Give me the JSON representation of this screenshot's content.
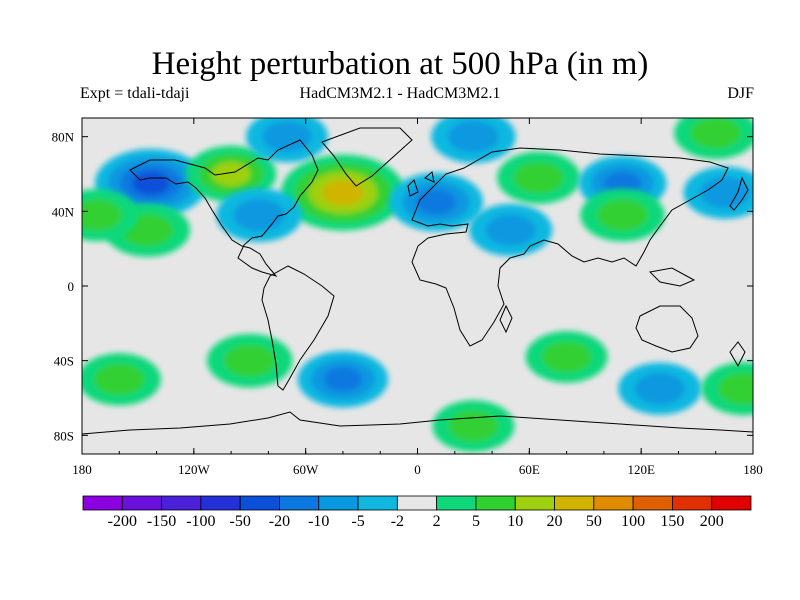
{
  "title": "Height perturbation at 500 hPa (in m)",
  "subtitle_left": "Expt = tdali-tdaji",
  "subtitle_center": "HadCM3M2.1 - HadCM3M2.1",
  "subtitle_right": "DJF",
  "axes": {
    "lon_range": [
      -180,
      180
    ],
    "lat_range": [
      -90,
      90
    ],
    "x_ticks": [
      {
        "value": -180,
        "label": "180"
      },
      {
        "value": -120,
        "label": "120W"
      },
      {
        "value": -60,
        "label": "60W"
      },
      {
        "value": 0,
        "label": "0"
      },
      {
        "value": 60,
        "label": "60E"
      },
      {
        "value": 120,
        "label": "120E"
      },
      {
        "value": 180,
        "label": "180"
      }
    ],
    "y_ticks": [
      {
        "value": 80,
        "label": "80N"
      },
      {
        "value": 40,
        "label": "40N"
      },
      {
        "value": 0,
        "label": "0"
      },
      {
        "value": -40,
        "label": "40S"
      },
      {
        "value": -80,
        "label": "80S"
      }
    ]
  },
  "colorbar": {
    "colors": [
      "#8b00e0",
      "#6a10dc",
      "#4a20d8",
      "#2530d8",
      "#0a50d8",
      "#0a78e0",
      "#0a98e0",
      "#10b8e0",
      "#e6e6e6",
      "#10d87a",
      "#30d030",
      "#9ed010",
      "#d0b400",
      "#e08c00",
      "#e06000",
      "#e03000",
      "#e00000"
    ],
    "labels": [
      "-200",
      "-150",
      "-100",
      "-50",
      "-20",
      "-10",
      "-5",
      "-2",
      "2",
      "5",
      "10",
      "20",
      "50",
      "100",
      "150",
      "200"
    ]
  },
  "field": {
    "background": "#e6e6e6",
    "anomalies": [
      {
        "lon": -143,
        "lat": 55,
        "value": -30
      },
      {
        "lon": -145,
        "lat": 30,
        "value": 8
      },
      {
        "lon": -172,
        "lat": 38,
        "value": 6
      },
      {
        "lon": -100,
        "lat": 60,
        "value": 12
      },
      {
        "lon": -70,
        "lat": 80,
        "value": -5
      },
      {
        "lon": -40,
        "lat": 50,
        "value": 40
      },
      {
        "lon": -85,
        "lat": 38,
        "value": -8
      },
      {
        "lon": 10,
        "lat": 45,
        "value": -15
      },
      {
        "lon": 30,
        "lat": 80,
        "value": -7
      },
      {
        "lon": 50,
        "lat": 30,
        "value": -6
      },
      {
        "lon": 65,
        "lat": 58,
        "value": 6
      },
      {
        "lon": 110,
        "lat": 55,
        "value": -10
      },
      {
        "lon": 110,
        "lat": 38,
        "value": 7
      },
      {
        "lon": 165,
        "lat": 50,
        "value": -6
      },
      {
        "lon": 160,
        "lat": 82,
        "value": 6
      },
      {
        "lon": -160,
        "lat": -50,
        "value": 6
      },
      {
        "lon": -90,
        "lat": -40,
        "value": 8
      },
      {
        "lon": -40,
        "lat": -50,
        "value": -12
      },
      {
        "lon": 80,
        "lat": -38,
        "value": 5
      },
      {
        "lon": 130,
        "lat": -55,
        "value": -6
      },
      {
        "lon": 175,
        "lat": -55,
        "value": 7
      },
      {
        "lon": 30,
        "lat": -75,
        "value": 5
      }
    ]
  }
}
